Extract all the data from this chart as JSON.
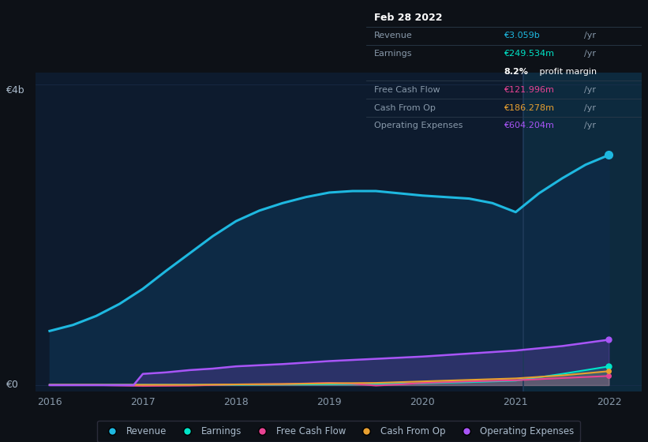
{
  "bg_color": "#0d1117",
  "plot_bg_color": "#0d1b2e",
  "plot_bg_color_right": "#0d2235",
  "ylabel_4b": "€4b",
  "ylabel_0": "€0",
  "revenue_color": "#1eb8e0",
  "earnings_color": "#00e5c8",
  "fcf_color": "#e84393",
  "cashop_color": "#e8a030",
  "opex_color": "#a855f7",
  "revenue_fill_color": "#0d2a45",
  "grid_color": "#1e3050",
  "vline_x": 2021.08,
  "info_box_bg": "#000000",
  "info_box_border": "#2a3a4a",
  "legend_items": [
    {
      "label": "Revenue",
      "color": "#1eb8e0"
    },
    {
      "label": "Earnings",
      "color": "#00e5c8"
    },
    {
      "label": "Free Cash Flow",
      "color": "#e84393"
    },
    {
      "label": "Cash From Op",
      "color": "#e8a030"
    },
    {
      "label": "Operating Expenses",
      "color": "#a855f7"
    }
  ],
  "revenue_x": [
    2016.0,
    2016.25,
    2016.5,
    2016.75,
    2017.0,
    2017.25,
    2017.5,
    2017.75,
    2018.0,
    2018.25,
    2018.5,
    2018.75,
    2019.0,
    2019.25,
    2019.5,
    2019.75,
    2020.0,
    2020.25,
    2020.5,
    2020.75,
    2021.0,
    2021.25,
    2021.5,
    2021.75,
    2022.0
  ],
  "revenue_y": [
    0.72,
    0.8,
    0.92,
    1.08,
    1.28,
    1.52,
    1.75,
    1.98,
    2.18,
    2.32,
    2.42,
    2.5,
    2.56,
    2.58,
    2.58,
    2.55,
    2.52,
    2.5,
    2.48,
    2.42,
    2.3,
    2.55,
    2.75,
    2.93,
    3.059
  ],
  "earnings_x": [
    2016.0,
    2016.5,
    2017.0,
    2017.5,
    2018.0,
    2018.5,
    2019.0,
    2019.5,
    2020.0,
    2020.5,
    2021.0,
    2021.5,
    2022.0
  ],
  "earnings_y": [
    0.005,
    0.005,
    0.005,
    0.005,
    0.005,
    0.008,
    0.012,
    0.015,
    0.025,
    0.04,
    0.06,
    0.15,
    0.2495
  ],
  "fcf_x": [
    2016.0,
    2016.5,
    2017.0,
    2017.5,
    2018.0,
    2018.5,
    2019.0,
    2019.25,
    2019.5,
    2019.75,
    2020.0,
    2020.5,
    2021.0,
    2021.5,
    2022.0
  ],
  "fcf_y": [
    0.002,
    0.002,
    -0.01,
    -0.005,
    0.01,
    0.015,
    0.03,
    0.02,
    -0.005,
    0.01,
    0.03,
    0.05,
    0.065,
    0.095,
    0.122
  ],
  "cashop_x": [
    2016.0,
    2016.5,
    2017.0,
    2017.5,
    2018.0,
    2018.5,
    2019.0,
    2019.5,
    2020.0,
    2020.5,
    2021.0,
    2021.5,
    2022.0
  ],
  "cashop_y": [
    0.005,
    0.005,
    0.005,
    0.005,
    0.01,
    0.015,
    0.025,
    0.03,
    0.05,
    0.07,
    0.09,
    0.13,
    0.186
  ],
  "opex_x": [
    2016.0,
    2016.5,
    2016.9,
    2017.0,
    2017.25,
    2017.5,
    2017.75,
    2018.0,
    2018.5,
    2019.0,
    2019.5,
    2020.0,
    2020.5,
    2021.0,
    2021.5,
    2022.0
  ],
  "opex_y": [
    0.0,
    0.0,
    0.0,
    0.15,
    0.17,
    0.2,
    0.22,
    0.25,
    0.28,
    0.32,
    0.35,
    0.38,
    0.42,
    0.46,
    0.52,
    0.604
  ],
  "xlim_left": 2015.85,
  "xlim_right": 2022.35,
  "ylim_bottom": -0.08,
  "ylim_top": 4.15,
  "x_ticks": [
    2016,
    2017,
    2018,
    2019,
    2020,
    2021,
    2022
  ]
}
